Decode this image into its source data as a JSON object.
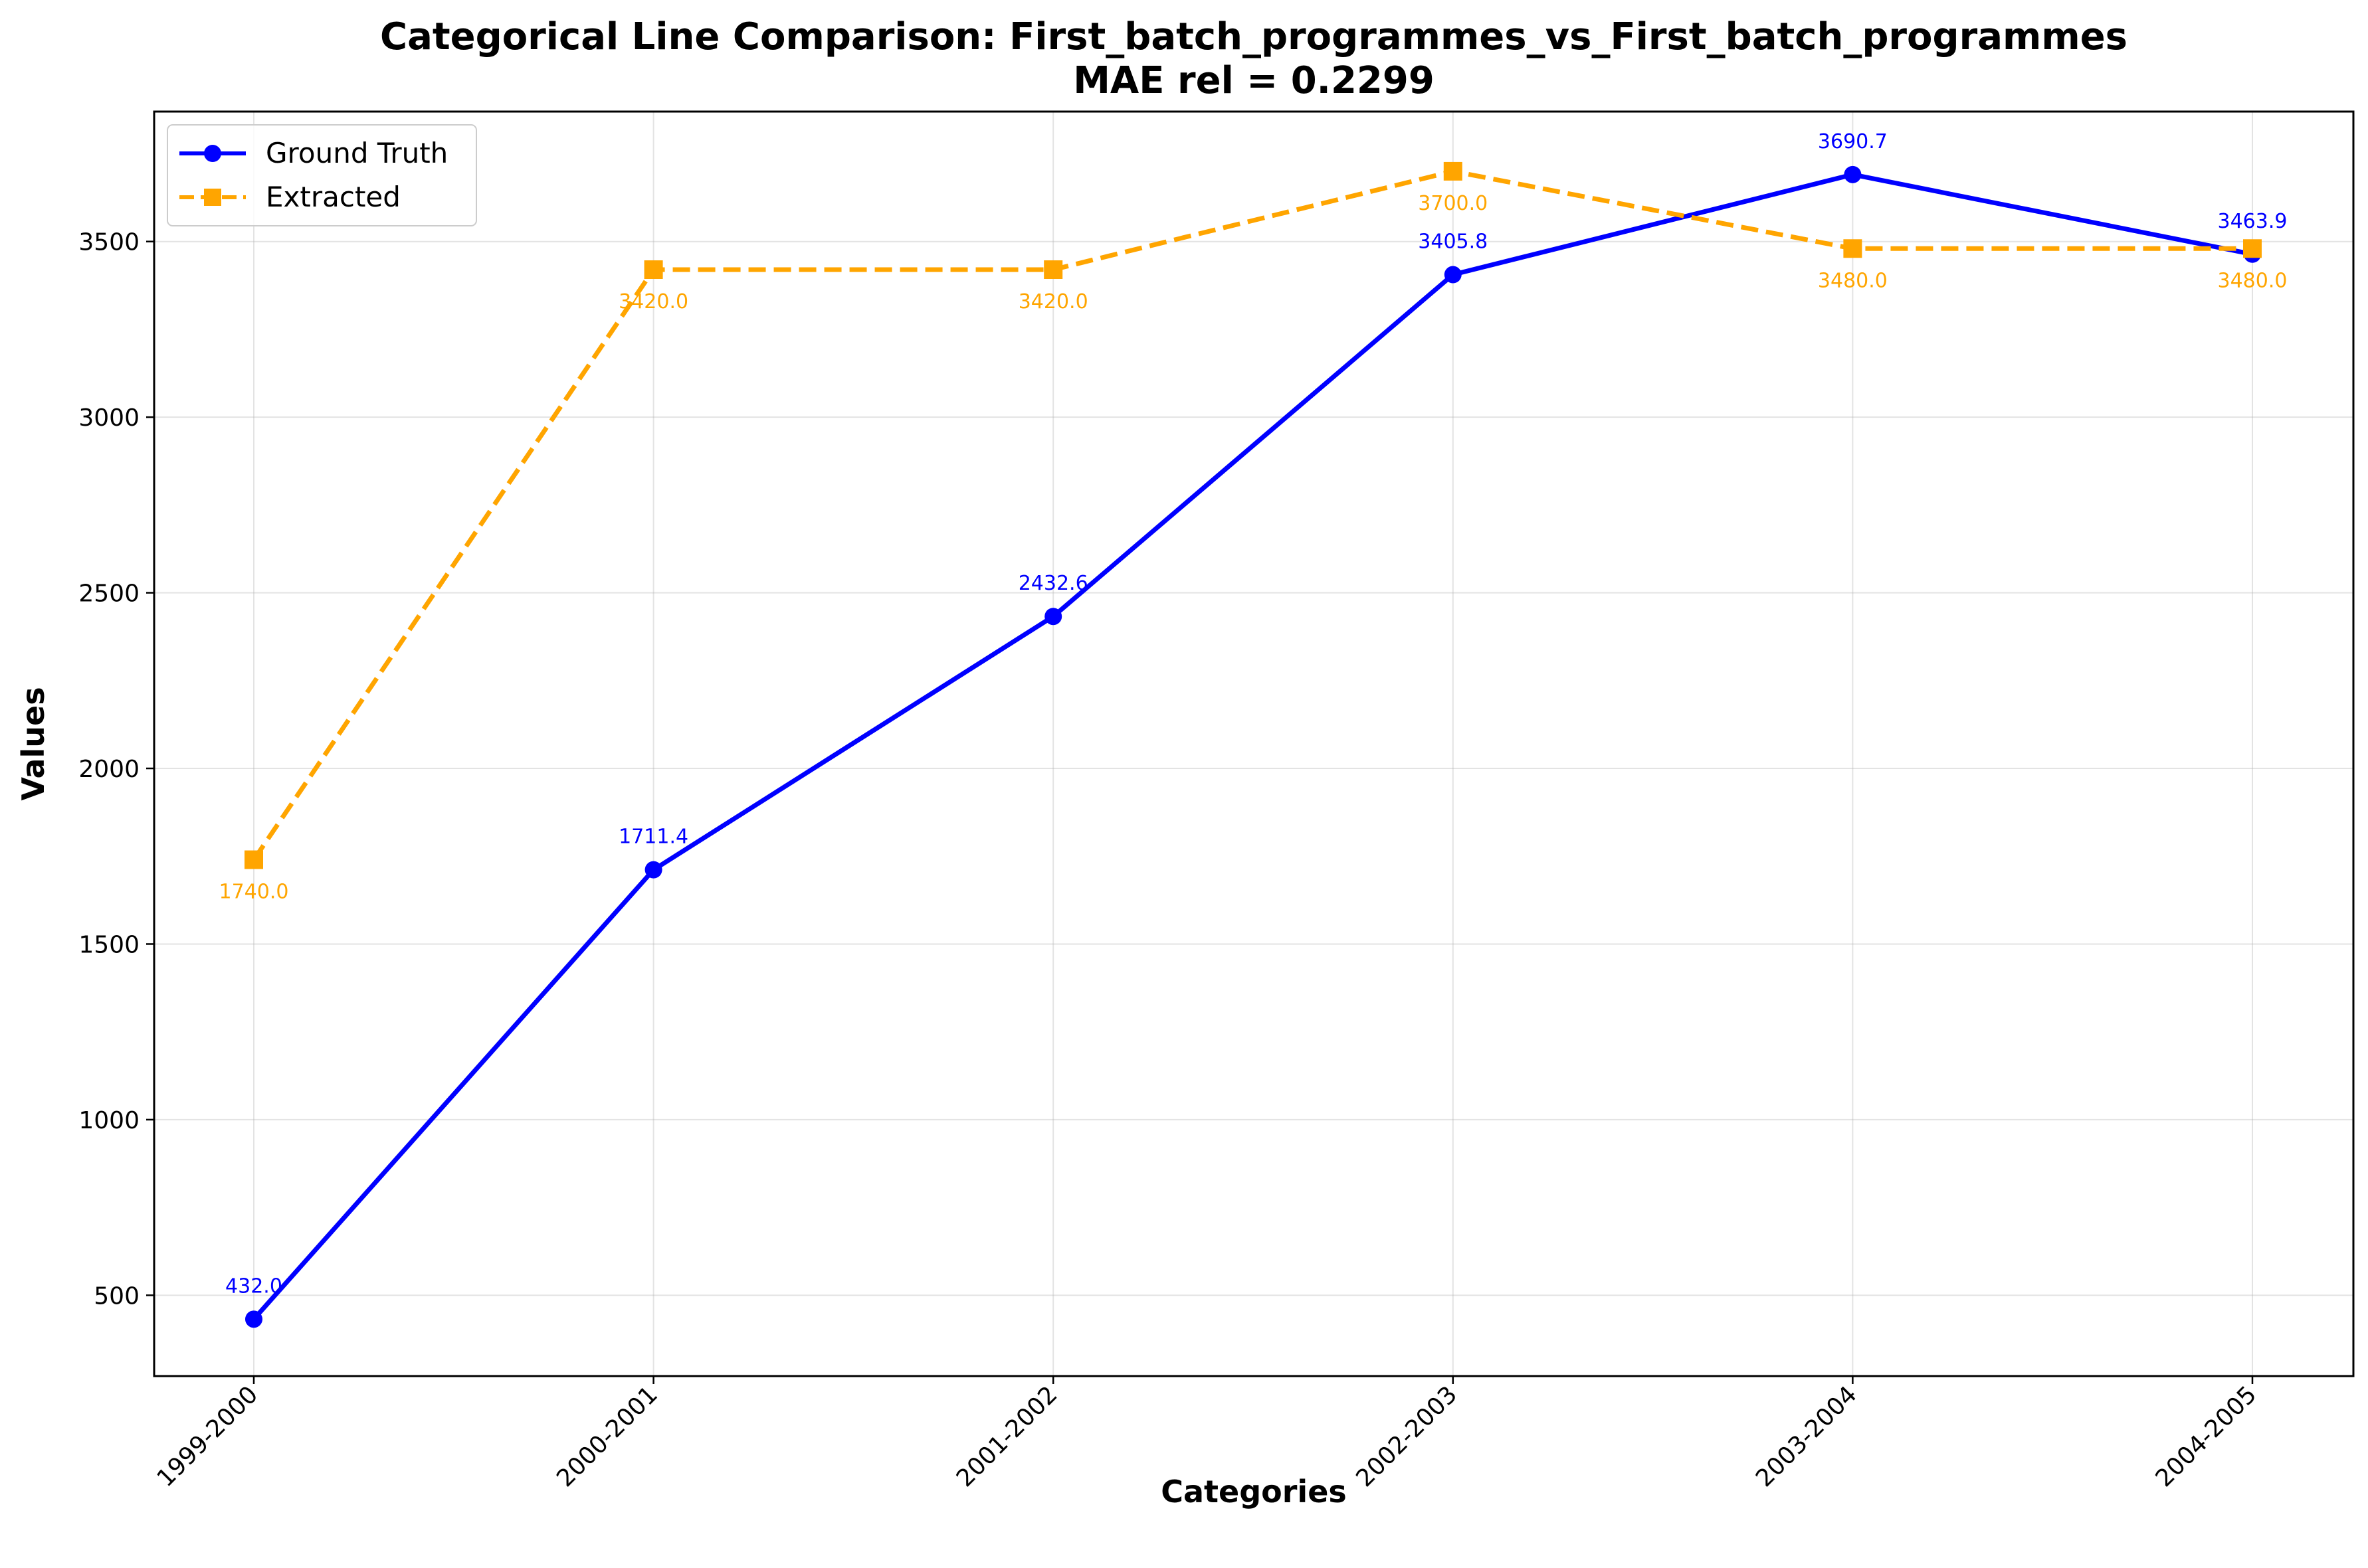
{
  "chart_data": {
    "type": "line",
    "title": "Categorical Line Comparison: First_batch_programmes_vs_First_batch_programmes",
    "subtitle": "MAE rel = 0.2299",
    "xlabel": "Categories",
    "ylabel": "Values",
    "categories": [
      "1999-2000",
      "2000-2001",
      "2001-2002",
      "2002-2003",
      "2003-2004",
      "2004-2005"
    ],
    "ylim": [
      270,
      3870
    ],
    "yticks": [
      500,
      1000,
      1500,
      2000,
      2500,
      3000,
      3500
    ],
    "ytick_labels": [
      "500",
      "1000",
      "1500",
      "2000",
      "2500",
      "3000",
      "3500"
    ],
    "grid": true,
    "legend_position": "top-left",
    "series": [
      {
        "name": "Ground Truth",
        "color": "#0000ff",
        "line_style": "solid",
        "marker": "circle",
        "values": [
          432.0,
          1711.4,
          2432.6,
          3405.8,
          3690.7,
          3463.9
        ],
        "labels": [
          "432.0",
          "1711.4",
          "2432.6",
          "3405.8",
          "3690.7",
          "3463.9"
        ]
      },
      {
        "name": "Extracted",
        "color": "#ffa500",
        "line_style": "dashed",
        "marker": "square",
        "values": [
          1740.0,
          3420.0,
          3420.0,
          3700.0,
          3480.0,
          3480.0
        ],
        "labels": [
          "1740.0",
          "3420.0",
          "3420.0",
          "3700.0",
          "3480.0",
          "3480.0"
        ]
      }
    ]
  }
}
